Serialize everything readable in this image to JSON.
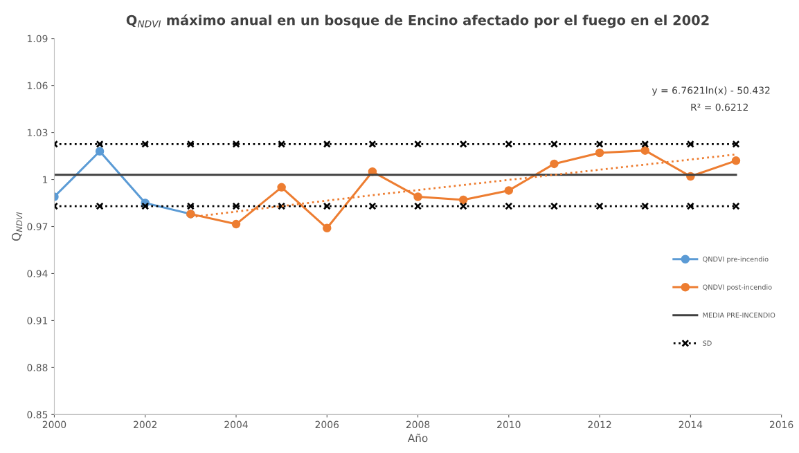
{
  "chart_data": {
    "type": "line",
    "title": "Q$_{NDVI}$ máximo anual en un bosque de Encino afectado por el fuego en el 2002",
    "xlabel": "Año",
    "ylabel": "Q$_{NDVI}$",
    "annotations": [
      "y = 6.7621ln(x) - 50.432",
      "R² = 0.6212"
    ],
    "xlim": [
      2000,
      2016
    ],
    "xticks": [
      2000,
      2002,
      2004,
      2006,
      2008,
      2010,
      2012,
      2014,
      2016
    ],
    "ylim": [
      0.85,
      1.09
    ],
    "yticks": [
      0.85,
      0.88,
      0.91,
      0.94,
      0.97,
      1,
      1.03,
      1.06,
      1.09
    ],
    "grid": false,
    "legend": "right",
    "series": [
      {
        "name": "QNDVI pre-incendio",
        "color": "#5b9bd5",
        "marker": "circle",
        "line_style": "solid",
        "x": [
          2000,
          2001,
          2002,
          2003
        ],
        "values": [
          0.989,
          1.018,
          0.985,
          0.978
        ]
      },
      {
        "name": "QNDVI post-incendio",
        "color": "#ed7d31",
        "marker": "circle",
        "line_style": "solid",
        "x": [
          2003,
          2004,
          2005,
          2006,
          2007,
          2008,
          2009,
          2010,
          2011,
          2012,
          2013,
          2014,
          2015
        ],
        "values": [
          0.978,
          0.9715,
          0.995,
          0.969,
          1.005,
          0.989,
          0.987,
          0.993,
          1.01,
          1.017,
          1.0185,
          1.002,
          1.012
        ]
      },
      {
        "name": "MEDIA PRE-INCENDIO",
        "color": "#404040",
        "marker": "none",
        "line_style": "solid",
        "x": [
          2000,
          2015
        ],
        "values": [
          1.003,
          1.003
        ]
      },
      {
        "name": "SD",
        "color": "#000000",
        "marker": "cross",
        "line_style": "dotted",
        "x": [
          2000,
          2001,
          2002,
          2003,
          2004,
          2005,
          2006,
          2007,
          2008,
          2009,
          2010,
          2011,
          2012,
          2013,
          2014,
          2015
        ],
        "values": [
          1.0226,
          1.0226,
          1.0226,
          1.0226,
          1.0226,
          1.0226,
          1.0226,
          1.0226,
          1.0226,
          1.0226,
          1.0226,
          1.0226,
          1.0226,
          1.0226,
          1.0226,
          1.0226
        ]
      },
      {
        "color": "#000000",
        "marker": "cross",
        "line_style": "dotted",
        "x": [
          2000,
          2001,
          2002,
          2003,
          2004,
          2005,
          2006,
          2007,
          2008,
          2009,
          2010,
          2011,
          2012,
          2013,
          2014,
          2015
        ],
        "values": [
          0.983,
          0.983,
          0.983,
          0.983,
          0.983,
          0.983,
          0.983,
          0.983,
          0.983,
          0.983,
          0.983,
          0.983,
          0.983,
          0.983,
          0.983,
          0.983
        ]
      },
      {
        "color": "#ed7d31",
        "marker": "none",
        "line_style": "dotted",
        "x": [
          2003,
          2007,
          2011,
          2015
        ],
        "values": [
          0.976,
          0.99,
          1.003,
          1.016
        ]
      }
    ]
  }
}
